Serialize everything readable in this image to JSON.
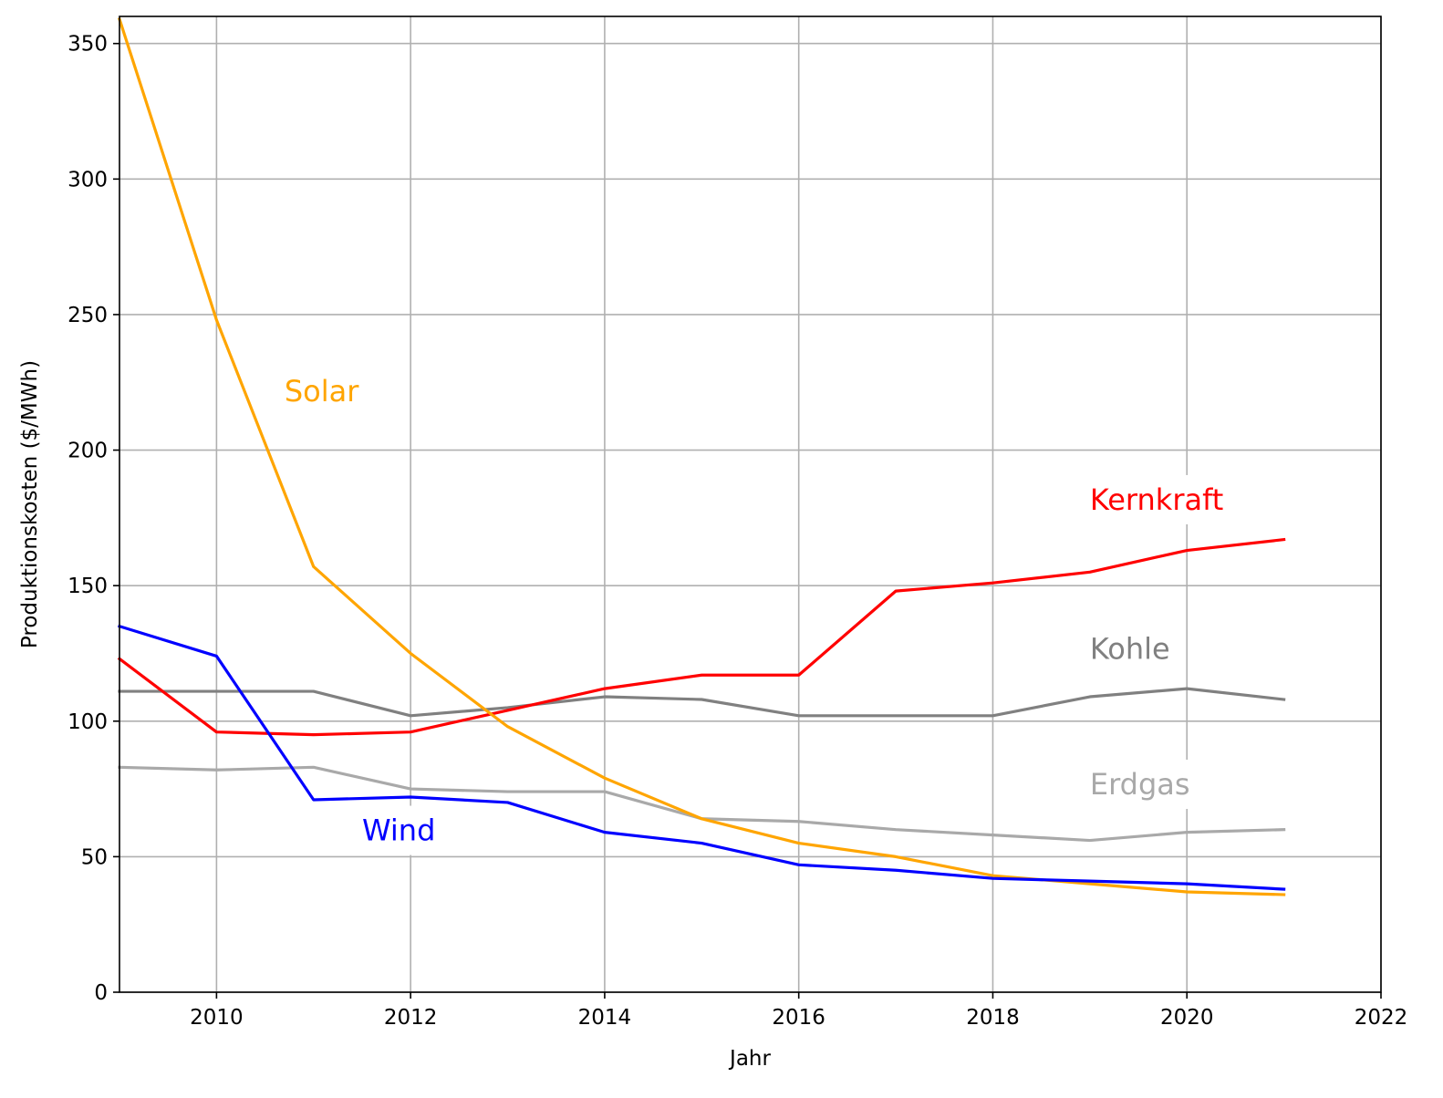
{
  "chart_data": {
    "type": "line",
    "title": "",
    "xlabel": "Jahr",
    "ylabel": "Produktionskosten ($/MWh)",
    "xlim": [
      2009,
      2022
    ],
    "ylim": [
      0,
      360
    ],
    "xticks": [
      2010,
      2012,
      2014,
      2016,
      2018,
      2020,
      2022
    ],
    "yticks": [
      0,
      50,
      100,
      150,
      200,
      250,
      300,
      350
    ],
    "grid": true,
    "legend": "none (inline labels)",
    "x": [
      2009,
      2010,
      2011,
      2012,
      2013,
      2014,
      2015,
      2016,
      2017,
      2018,
      2019,
      2020,
      2021
    ],
    "series": [
      {
        "name": "Erdgas",
        "color": "#a9a9a9",
        "values": [
          83,
          82,
          83,
          75,
          74,
          74,
          64,
          63,
          60,
          58,
          56,
          59,
          60
        ]
      },
      {
        "name": "Kohle",
        "color": "#808080",
        "values": [
          111,
          111,
          111,
          102,
          105,
          109,
          108,
          102,
          102,
          102,
          109,
          112,
          108
        ]
      },
      {
        "name": "Kernkraft",
        "color": "#ff0000",
        "values": [
          123,
          96,
          95,
          96,
          104,
          112,
          117,
          117,
          148,
          151,
          155,
          163,
          167
        ]
      },
      {
        "name": "Solar",
        "color": "#ffa500",
        "values": [
          359,
          248,
          157,
          125,
          98,
          79,
          64,
          55,
          50,
          43,
          40,
          37,
          36
        ]
      },
      {
        "name": "Wind",
        "color": "#0000ff",
        "values": [
          135,
          124,
          71,
          72,
          70,
          59,
          55,
          47,
          45,
          42,
          41,
          40,
          38
        ]
      }
    ],
    "annotations": [
      {
        "text": "Solar",
        "x": 2010.7,
        "y": 218,
        "color": "#ffa500"
      },
      {
        "text": "Kernkraft",
        "x": 2019.0,
        "y": 178,
        "color": "#ff0000"
      },
      {
        "text": "Kohle",
        "x": 2019.0,
        "y": 123,
        "color": "#808080"
      },
      {
        "text": "Erdgas",
        "x": 2019.0,
        "y": 73,
        "color": "#a9a9a9"
      },
      {
        "text": "Wind",
        "x": 2011.5,
        "y": 56,
        "color": "#0000ff"
      }
    ]
  }
}
